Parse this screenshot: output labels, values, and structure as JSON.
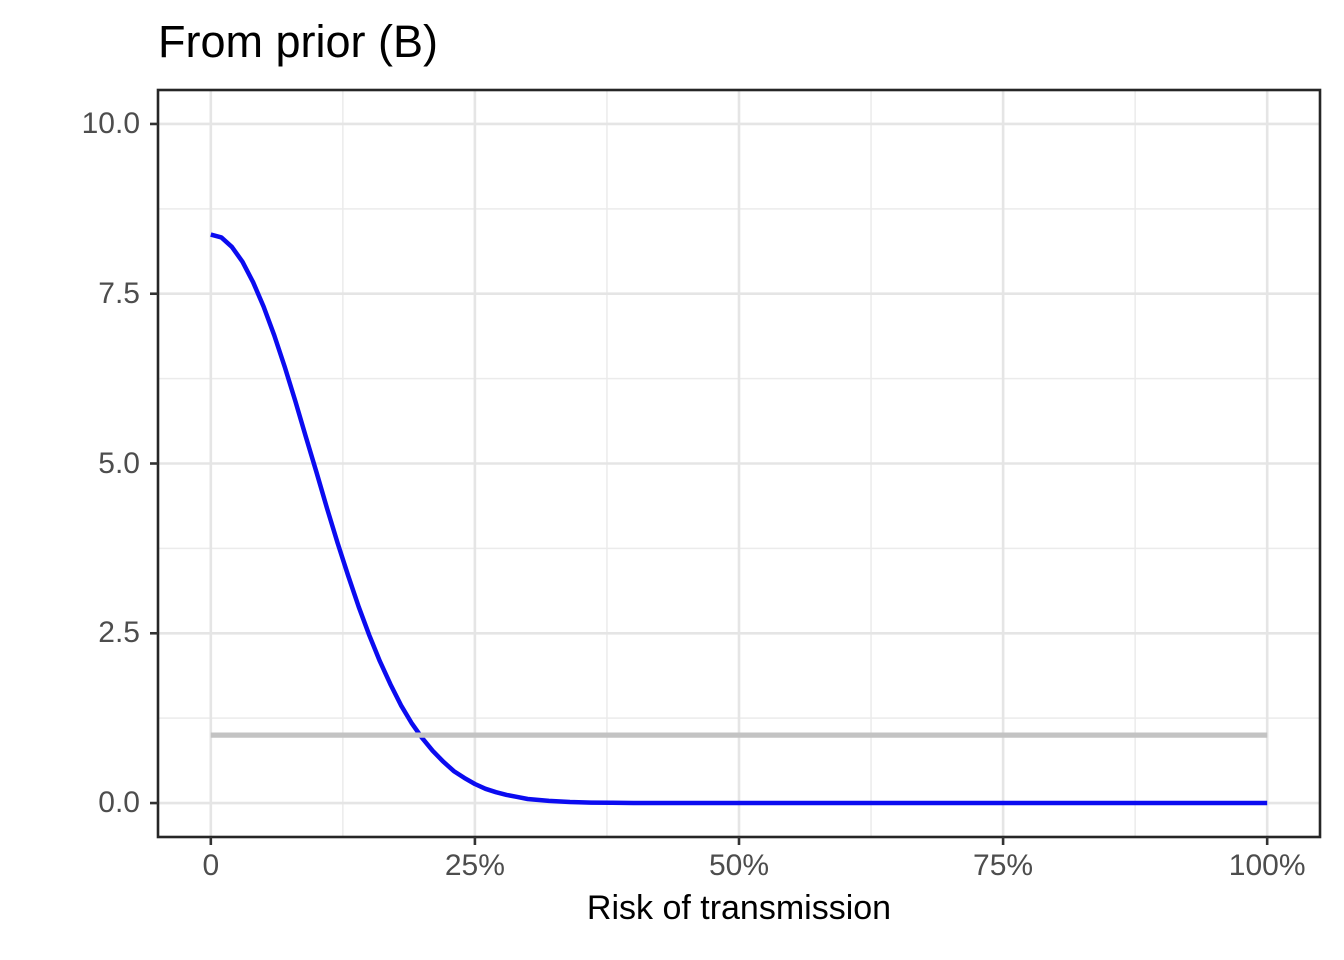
{
  "figure": {
    "title": "From prior (B)",
    "background": "#ffffff"
  },
  "chart_data": {
    "type": "line",
    "title": "From prior (B)",
    "xlabel": "Risk of transmission",
    "ylabel": "",
    "xlim": [
      0,
      100
    ],
    "ylim": [
      0,
      10
    ],
    "expand_frac_x": 0.05,
    "expand_frac_y": 0.05,
    "x_unit": "percent",
    "legend": "none",
    "grid": {
      "major": true,
      "minor": true,
      "style": "ggplot theme_bw: white panel, light gray grid, dark panel border"
    },
    "x_ticks": [
      {
        "v": 0,
        "label": "0"
      },
      {
        "v": 25,
        "label": "25%"
      },
      {
        "v": 50,
        "label": "50%"
      },
      {
        "v": 75,
        "label": "75%"
      },
      {
        "v": 100,
        "label": "100%"
      }
    ],
    "y_ticks": [
      {
        "v": 0,
        "label": "0.0"
      },
      {
        "v": 2.5,
        "label": "2.5"
      },
      {
        "v": 5,
        "label": "5.0"
      },
      {
        "v": 7.5,
        "label": "7.5"
      },
      {
        "v": 10,
        "label": "10.0"
      }
    ],
    "x_minor": [
      12.5,
      37.5,
      62.5,
      87.5
    ],
    "y_minor": [
      1.25,
      3.75,
      6.25,
      8.75
    ],
    "colors": {
      "curve": "#0b0bf0",
      "reference_line": "#c3c3c3",
      "major_grid": "#e5e5e5",
      "minor_grid": "#ebebeb",
      "panel_border": "#262626",
      "tick_mark": "#333333",
      "tick_text": "#4d4d4d",
      "title_text": "#000000"
    },
    "series": [
      {
        "name": "prior-density-curve",
        "color": "#0b0bf0",
        "width": 4.5,
        "x": [
          0,
          1,
          2,
          3,
          4,
          5,
          6,
          7,
          8,
          9,
          10,
          11,
          12,
          13,
          14,
          15,
          16,
          17,
          18,
          19,
          20,
          21,
          22,
          23,
          24,
          25,
          26,
          27,
          28,
          29,
          30,
          32,
          34,
          36,
          38,
          40,
          45,
          50,
          60,
          70,
          80,
          90,
          100
        ],
        "y": [
          8.37,
          8.33,
          8.19,
          7.97,
          7.67,
          7.31,
          6.89,
          6.42,
          5.92,
          5.39,
          4.87,
          4.34,
          3.83,
          3.35,
          2.89,
          2.47,
          2.09,
          1.75,
          1.44,
          1.18,
          0.96,
          0.77,
          0.61,
          0.47,
          0.37,
          0.28,
          0.21,
          0.16,
          0.12,
          0.09,
          0.06,
          0.032,
          0.016,
          0.007,
          0.003,
          0.001,
          0,
          0,
          0,
          0,
          0,
          0,
          0
        ]
      },
      {
        "name": "uniform-reference-line",
        "color": "#c3c3c3",
        "width": 5.2,
        "x": [
          0,
          100
        ],
        "y": [
          1,
          1
        ]
      }
    ]
  }
}
